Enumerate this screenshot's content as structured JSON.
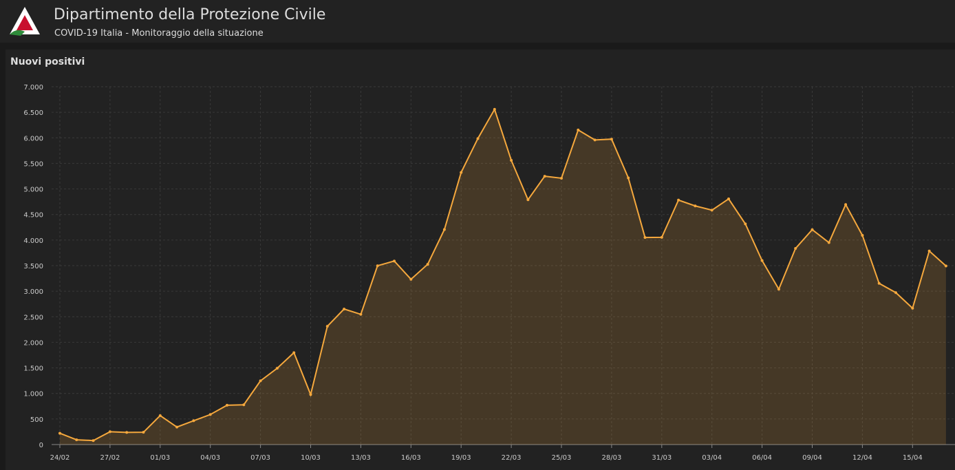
{
  "header": {
    "title": "Dipartimento della Protezione Civile",
    "subtitle": "COVID-19 Italia - Monitoraggio della situazione"
  },
  "chart_data": {
    "type": "line",
    "title": "Nuovi positivi",
    "color": "#f5a83d",
    "grid": true,
    "categories": [
      "24/02",
      null,
      null,
      "27/02",
      null,
      null,
      "01/03",
      null,
      null,
      "04/03",
      null,
      null,
      "07/03",
      null,
      null,
      "10/03",
      null,
      null,
      "13/03",
      null,
      null,
      "16/03",
      null,
      null,
      "19/03",
      null,
      null,
      "22/03",
      null,
      null,
      "25/03",
      null,
      null,
      "28/03",
      null,
      null,
      "31/03",
      null,
      null,
      "03/04",
      null,
      null,
      "06/04",
      null,
      null,
      "09/04",
      null,
      null,
      "12/04",
      null,
      null,
      "15/04",
      null,
      null
    ],
    "values": [
      221,
      93,
      78,
      250,
      238,
      240,
      566,
      342,
      466,
      587,
      769,
      778,
      1247,
      1492,
      1797,
      977,
      2313,
      2651,
      2547,
      3497,
      3590,
      3233,
      3526,
      4207,
      5322,
      5986,
      6557,
      5560,
      4789,
      5249,
      5210,
      6153,
      5959,
      5974,
      5217,
      4050,
      4053,
      4782,
      4668,
      4585,
      4805,
      4316,
      3599,
      3039,
      3836,
      4204,
      3951,
      4694,
      4092,
      3153,
      2972,
      2667,
      3786,
      3493
    ],
    "ylim": [
      0,
      7000
    ],
    "yticks": [
      0,
      500,
      {
        "value": 1000,
        "label": "1.000"
      },
      {
        "value": 1500,
        "label": "1.500"
      },
      {
        "value": 2000,
        "label": "2.000"
      },
      {
        "value": 2500,
        "label": "2.500"
      },
      {
        "value": 3000,
        "label": "3.000"
      },
      {
        "value": 3500,
        "label": "3.500"
      },
      {
        "value": 4000,
        "label": "4.000"
      },
      {
        "value": 4500,
        "label": "4.500"
      },
      {
        "value": 5000,
        "label": "5.000"
      },
      {
        "value": 5500,
        "label": "5.500"
      },
      {
        "value": 6000,
        "label": "6.000"
      },
      {
        "value": 6500,
        "label": "6.500"
      },
      {
        "value": 7000,
        "label": "7.000"
      }
    ]
  }
}
